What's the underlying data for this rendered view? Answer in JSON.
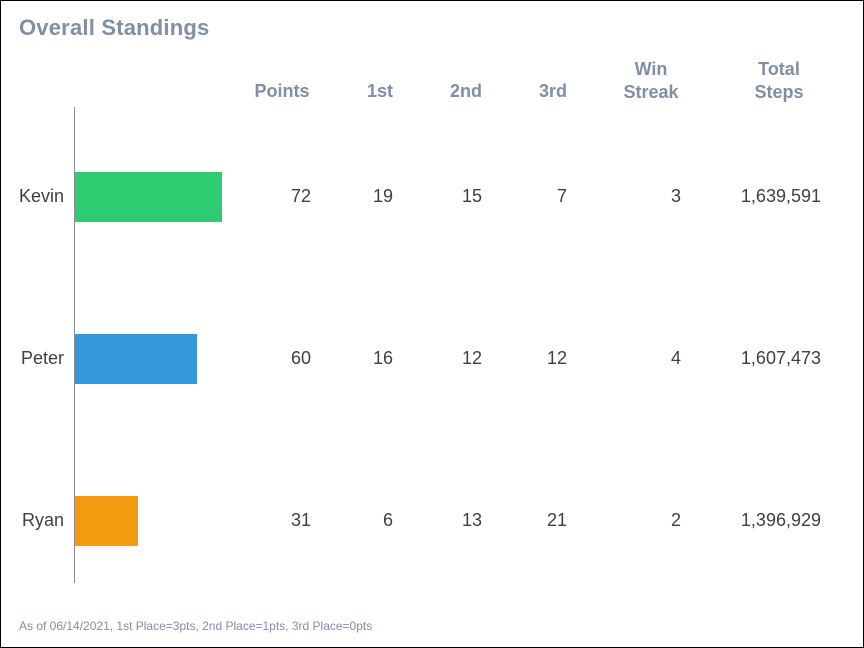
{
  "title": "Overall Standings",
  "footnote": "As of 06/14/2021, 1st Place=3pts, 2nd Place=1pts, 3rd Place=0pts",
  "columns": {
    "points": "Points",
    "first": "1st",
    "second": "2nd",
    "third": "3rd",
    "streak_1": "Win",
    "streak_2": "Streak",
    "steps_1": "Total",
    "steps_2": "Steps"
  },
  "chart_data": {
    "type": "bar",
    "orientation": "horizontal",
    "title": "Overall Standings",
    "categories": [
      "Kevin",
      "Peter",
      "Ryan"
    ],
    "values": [
      72,
      60,
      31
    ],
    "colors": [
      "#2ecc71",
      "#3498db",
      "#f39c12"
    ],
    "xlim": [
      0,
      150
    ],
    "table": {
      "columns": [
        "Points",
        "1st",
        "2nd",
        "3rd",
        "Win Streak",
        "Total Steps"
      ],
      "rows": [
        {
          "name": "Kevin",
          "points": "72",
          "first": "19",
          "second": "15",
          "third": "7",
          "streak": "3",
          "steps": "1,639,591"
        },
        {
          "name": "Peter",
          "points": "60",
          "first": "16",
          "second": "12",
          "third": "12",
          "streak": "4",
          "steps": "1,607,473"
        },
        {
          "name": "Ryan",
          "points": "31",
          "first": "6",
          "second": "13",
          "third": "21",
          "streak": "2",
          "steps": "1,396,929"
        }
      ]
    }
  }
}
